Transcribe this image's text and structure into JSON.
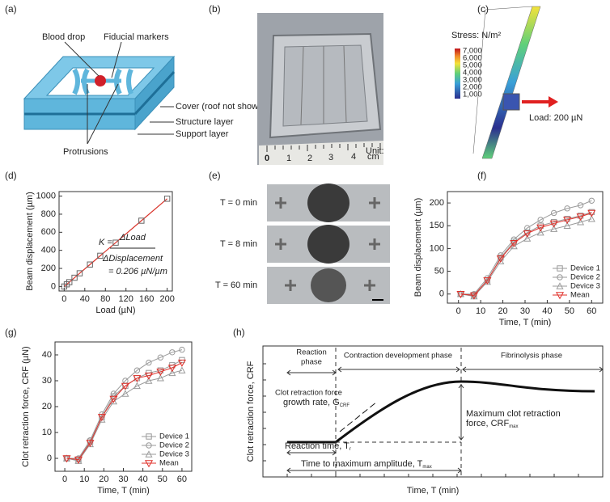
{
  "figure": {
    "panel_labels": [
      "(a)",
      "(b)",
      "(c)",
      "(d)",
      "(e)",
      "(f)",
      "(g)",
      "(h)"
    ],
    "panel_a": {
      "labels": [
        "Blood drop",
        "Fiducial markers",
        "Cover (roof not shown)",
        "Structure layer",
        "Support layer",
        "Protrusions"
      ]
    },
    "panel_b": {
      "ruler_labels": [
        "0",
        "1",
        "2",
        "3",
        "4"
      ],
      "unit": [
        "Unit:",
        "cm"
      ]
    },
    "panel_c": {
      "colorbar_title": "Stress: N/m²",
      "colorbar_labels": [
        "7,000",
        "6,000",
        "5,000",
        "4,000",
        "3,000",
        "2,000",
        "1,000"
      ],
      "load_label": "Load: 200 µN"
    },
    "panel_e": {
      "row_labels": [
        "T = 0 min",
        "T = 8 min",
        "T = 60 min"
      ]
    },
    "panel_h": {
      "y_label": "Clot retraction force, CRF",
      "x_label": "Time, T (min)",
      "phases": [
        [
          "Reaction",
          "phase"
        ],
        "Contraction development phase",
        "Fibrinolysis phase"
      ],
      "growth_rate": [
        "Clot retraction force",
        "growth rate, G",
        "CRF"
      ],
      "max_force": [
        "Maximum clot retraction",
        "force, CRF",
        "max"
      ],
      "reaction_time": [
        "Reaction time, T",
        "r"
      ],
      "time_to_max": [
        "Time to maximum amplitude, T",
        "max"
      ]
    }
  },
  "chart_data": [
    {
      "type": "line",
      "x_label": "Load (µN)",
      "y_label": "Beam displacement (µm)",
      "x": [
        0,
        5,
        10,
        20,
        30,
        50,
        70,
        100,
        150,
        200
      ],
      "series": [
        {
          "color": "#d9342b",
          "marker": "square",
          "marker_color": "#666666",
          "values": [
            0,
            24,
            48,
            97,
            146,
            243,
            340,
            485,
            728,
            971
          ]
        }
      ],
      "xlim": [
        -10,
        210
      ],
      "ylim": [
        -50,
        1050
      ],
      "xticks": [
        0,
        40,
        80,
        120,
        160,
        200
      ],
      "yticks": [
        0,
        200,
        400,
        600,
        800,
        1000
      ],
      "annotations": [
        "K =",
        "ΔLoad",
        "ΔDisplacement",
        "= 0.206 µN/µm"
      ]
    },
    {
      "type": "line",
      "x_label": "Time, T (min)",
      "y_label": "Beam displacement (µm)",
      "x": [
        1,
        7,
        13,
        19,
        25,
        31,
        37,
        43,
        49,
        55,
        60
      ],
      "series": [
        {
          "name": "Device 1",
          "color": "#9a9a9a",
          "marker": "square",
          "values": [
            0,
            -2,
            30,
            80,
            115,
            135,
            150,
            158,
            165,
            172,
            180
          ]
        },
        {
          "name": "Device 2",
          "color": "#9a9a9a",
          "marker": "circle",
          "values": [
            0,
            0,
            35,
            85,
            120,
            145,
            163,
            178,
            188,
            195,
            205
          ]
        },
        {
          "name": "Device 3",
          "color": "#9a9a9a",
          "marker": "triangle",
          "values": [
            0,
            -5,
            27,
            72,
            105,
            122,
            135,
            143,
            150,
            158,
            165
          ]
        },
        {
          "name": "Mean",
          "color": "#e0302a",
          "marker": "down-triangle",
          "values": [
            0,
            -3,
            30,
            78,
            112,
            133,
            146,
            155,
            163,
            170,
            178
          ]
        }
      ],
      "xlim": [
        -5,
        65
      ],
      "ylim": [
        -20,
        225
      ],
      "xticks": [
        0,
        10,
        20,
        30,
        40,
        50,
        60
      ],
      "yticks": [
        0,
        50,
        100,
        150,
        200
      ],
      "legend": "lower right"
    },
    {
      "type": "line",
      "x_label": "Time, T (min)",
      "y_label": "Clot retraction force, CRF (µN)",
      "x": [
        1,
        7,
        13,
        19,
        25,
        31,
        37,
        43,
        49,
        55,
        60
      ],
      "series": [
        {
          "name": "Device 1",
          "color": "#9a9a9a",
          "marker": "square",
          "values": [
            0,
            -0.4,
            6.5,
            16,
            24,
            28,
            31,
            33,
            34,
            36,
            38
          ]
        },
        {
          "name": "Device 2",
          "color": "#9a9a9a",
          "marker": "circle",
          "values": [
            0,
            0,
            7,
            17,
            25,
            30,
            34,
            37,
            39,
            41,
            42
          ]
        },
        {
          "name": "Device 3",
          "color": "#9a9a9a",
          "marker": "triangle",
          "values": [
            0,
            -1,
            5.5,
            15,
            22,
            25,
            28,
            30,
            31,
            33,
            34
          ]
        },
        {
          "name": "Mean",
          "color": "#e0302a",
          "marker": "down-triangle",
          "values": [
            0,
            -0.5,
            6,
            16,
            23,
            28,
            31,
            32,
            33.5,
            35,
            37
          ]
        }
      ],
      "xlim": [
        -5,
        65
      ],
      "ylim": [
        -5,
        45
      ],
      "xticks": [
        0,
        10,
        20,
        30,
        40,
        50,
        60
      ],
      "yticks": [
        0,
        10,
        20,
        30,
        40
      ],
      "legend": "lower right"
    }
  ]
}
